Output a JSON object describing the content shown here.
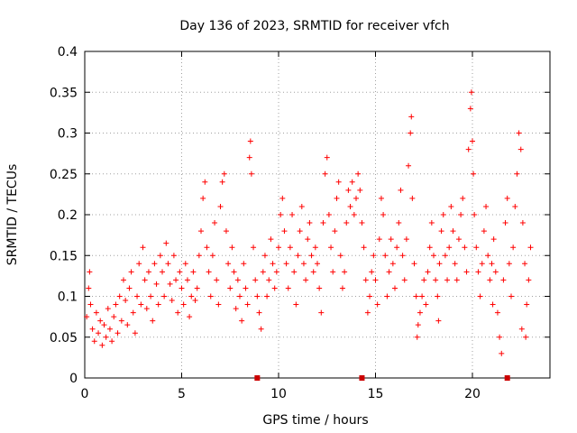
{
  "chart_data": {
    "type": "scatter",
    "title": "Day 136 of 2023, SRMTID for receiver vfch",
    "xlabel": "GPS time / hours",
    "ylabel": "SRMTID / TECUs",
    "xlim": [
      0,
      24
    ],
    "ylim": [
      0,
      0.4
    ],
    "x_ticks": [
      0,
      5,
      10,
      15,
      20
    ],
    "x_tick_labels": [
      "0",
      "5",
      "10",
      "15",
      "20"
    ],
    "y_ticks": [
      0,
      0.05,
      0.1,
      0.15,
      0.2,
      0.25,
      0.3,
      0.35,
      0.4
    ],
    "y_tick_labels": [
      "0",
      "0.05",
      "0.1",
      "0.15",
      "0.2",
      "0.25",
      "0.3",
      "0.35",
      "0.4"
    ],
    "grid": true,
    "marker": "plus",
    "color": "#ff0000",
    "series": [
      {
        "name": "SRMTID",
        "points": [
          [
            0.1,
            0.075
          ],
          [
            0.2,
            0.11
          ],
          [
            0.25,
            0.13
          ],
          [
            0.3,
            0.09
          ],
          [
            0.4,
            0.06
          ],
          [
            0.5,
            0.045
          ],
          [
            0.6,
            0.08
          ],
          [
            0.7,
            0.055
          ],
          [
            0.8,
            0.07
          ],
          [
            0.9,
            0.04
          ],
          [
            1.0,
            0.065
          ],
          [
            1.1,
            0.05
          ],
          [
            1.2,
            0.085
          ],
          [
            1.3,
            0.06
          ],
          [
            1.4,
            0.045
          ],
          [
            1.5,
            0.075
          ],
          [
            1.6,
            0.09
          ],
          [
            1.7,
            0.055
          ],
          [
            1.8,
            0.1
          ],
          [
            1.9,
            0.07
          ],
          [
            2.0,
            0.12
          ],
          [
            2.1,
            0.095
          ],
          [
            2.2,
            0.065
          ],
          [
            2.3,
            0.11
          ],
          [
            2.4,
            0.13
          ],
          [
            2.5,
            0.08
          ],
          [
            2.6,
            0.055
          ],
          [
            2.7,
            0.1
          ],
          [
            2.8,
            0.14
          ],
          [
            2.9,
            0.09
          ],
          [
            3.0,
            0.16
          ],
          [
            3.1,
            0.12
          ],
          [
            3.2,
            0.085
          ],
          [
            3.3,
            0.13
          ],
          [
            3.4,
            0.1
          ],
          [
            3.5,
            0.07
          ],
          [
            3.6,
            0.14
          ],
          [
            3.7,
            0.115
          ],
          [
            3.8,
            0.09
          ],
          [
            3.9,
            0.15
          ],
          [
            4.0,
            0.13
          ],
          [
            4.1,
            0.1
          ],
          [
            4.2,
            0.165
          ],
          [
            4.3,
            0.14
          ],
          [
            4.4,
            0.115
          ],
          [
            4.5,
            0.095
          ],
          [
            4.6,
            0.15
          ],
          [
            4.7,
            0.12
          ],
          [
            4.8,
            0.08
          ],
          [
            4.9,
            0.13
          ],
          [
            5.0,
            0.11
          ],
          [
            5.1,
            0.09
          ],
          [
            5.2,
            0.14
          ],
          [
            5.3,
            0.12
          ],
          [
            5.4,
            0.075
          ],
          [
            5.5,
            0.1
          ],
          [
            5.6,
            0.13
          ],
          [
            5.7,
            0.095
          ],
          [
            5.8,
            0.11
          ],
          [
            5.9,
            0.15
          ],
          [
            6.0,
            0.18
          ],
          [
            6.1,
            0.22
          ],
          [
            6.2,
            0.24
          ],
          [
            6.3,
            0.16
          ],
          [
            6.4,
            0.13
          ],
          [
            6.5,
            0.1
          ],
          [
            6.6,
            0.15
          ],
          [
            6.7,
            0.19
          ],
          [
            6.8,
            0.12
          ],
          [
            6.9,
            0.09
          ],
          [
            7.0,
            0.21
          ],
          [
            7.1,
            0.24
          ],
          [
            7.2,
            0.25
          ],
          [
            7.3,
            0.18
          ],
          [
            7.4,
            0.14
          ],
          [
            7.5,
            0.11
          ],
          [
            7.6,
            0.16
          ],
          [
            7.7,
            0.13
          ],
          [
            7.8,
            0.085
          ],
          [
            7.9,
            0.12
          ],
          [
            8.0,
            0.1
          ],
          [
            8.1,
            0.07
          ],
          [
            8.2,
            0.14
          ],
          [
            8.3,
            0.11
          ],
          [
            8.4,
            0.09
          ],
          [
            8.5,
            0.27
          ],
          [
            8.55,
            0.29
          ],
          [
            8.6,
            0.25
          ],
          [
            8.7,
            0.16
          ],
          [
            8.8,
            0.12
          ],
          [
            8.9,
            0.1
          ],
          [
            9.0,
            0.08
          ],
          [
            9.1,
            0.06
          ],
          [
            9.2,
            0.13
          ],
          [
            9.3,
            0.15
          ],
          [
            9.4,
            0.1
          ],
          [
            9.5,
            0.12
          ],
          [
            9.6,
            0.17
          ],
          [
            9.7,
            0.14
          ],
          [
            9.8,
            0.11
          ],
          [
            9.9,
            0.13
          ],
          [
            10.0,
            0.16
          ],
          [
            10.1,
            0.2
          ],
          [
            10.2,
            0.22
          ],
          [
            10.3,
            0.18
          ],
          [
            10.4,
            0.14
          ],
          [
            10.5,
            0.11
          ],
          [
            10.6,
            0.16
          ],
          [
            10.7,
            0.2
          ],
          [
            10.8,
            0.13
          ],
          [
            10.9,
            0.09
          ],
          [
            11.0,
            0.15
          ],
          [
            11.1,
            0.18
          ],
          [
            11.2,
            0.21
          ],
          [
            11.3,
            0.14
          ],
          [
            11.4,
            0.12
          ],
          [
            11.5,
            0.17
          ],
          [
            11.6,
            0.19
          ],
          [
            11.7,
            0.15
          ],
          [
            11.8,
            0.13
          ],
          [
            11.9,
            0.16
          ],
          [
            12.0,
            0.14
          ],
          [
            12.1,
            0.11
          ],
          [
            12.2,
            0.08
          ],
          [
            12.3,
            0.19
          ],
          [
            12.4,
            0.25
          ],
          [
            12.5,
            0.27
          ],
          [
            12.6,
            0.2
          ],
          [
            12.7,
            0.16
          ],
          [
            12.8,
            0.13
          ],
          [
            12.9,
            0.18
          ],
          [
            13.0,
            0.22
          ],
          [
            13.1,
            0.24
          ],
          [
            13.2,
            0.15
          ],
          [
            13.3,
            0.11
          ],
          [
            13.4,
            0.13
          ],
          [
            13.5,
            0.19
          ],
          [
            13.6,
            0.23
          ],
          [
            13.7,
            0.21
          ],
          [
            13.8,
            0.24
          ],
          [
            13.9,
            0.2
          ],
          [
            14.0,
            0.22
          ],
          [
            14.1,
            0.25
          ],
          [
            14.2,
            0.23
          ],
          [
            14.3,
            0.19
          ],
          [
            14.4,
            0.16
          ],
          [
            14.5,
            0.12
          ],
          [
            14.6,
            0.08
          ],
          [
            14.7,
            0.1
          ],
          [
            14.8,
            0.13
          ],
          [
            14.9,
            0.15
          ],
          [
            15.0,
            0.12
          ],
          [
            15.1,
            0.09
          ],
          [
            15.2,
            0.17
          ],
          [
            15.3,
            0.22
          ],
          [
            15.4,
            0.2
          ],
          [
            15.5,
            0.15
          ],
          [
            15.6,
            0.1
          ],
          [
            15.7,
            0.13
          ],
          [
            15.8,
            0.17
          ],
          [
            15.9,
            0.14
          ],
          [
            16.0,
            0.11
          ],
          [
            16.1,
            0.16
          ],
          [
            16.2,
            0.19
          ],
          [
            16.3,
            0.23
          ],
          [
            16.4,
            0.15
          ],
          [
            16.5,
            0.12
          ],
          [
            16.6,
            0.17
          ],
          [
            16.7,
            0.26
          ],
          [
            16.8,
            0.3
          ],
          [
            16.85,
            0.32
          ],
          [
            16.9,
            0.22
          ],
          [
            17.0,
            0.14
          ],
          [
            17.1,
            0.1
          ],
          [
            17.2,
            0.065
          ],
          [
            17.3,
            0.08
          ],
          [
            17.4,
            0.1
          ],
          [
            17.5,
            0.12
          ],
          [
            17.6,
            0.09
          ],
          [
            17.7,
            0.13
          ],
          [
            17.8,
            0.16
          ],
          [
            17.9,
            0.19
          ],
          [
            18.0,
            0.15
          ],
          [
            18.1,
            0.12
          ],
          [
            18.2,
            0.1
          ],
          [
            18.3,
            0.14
          ],
          [
            18.4,
            0.18
          ],
          [
            18.5,
            0.2
          ],
          [
            18.6,
            0.15
          ],
          [
            18.7,
            0.12
          ],
          [
            18.8,
            0.16
          ],
          [
            18.9,
            0.21
          ],
          [
            19.0,
            0.18
          ],
          [
            19.1,
            0.14
          ],
          [
            19.2,
            0.12
          ],
          [
            19.3,
            0.17
          ],
          [
            19.4,
            0.2
          ],
          [
            19.5,
            0.22
          ],
          [
            19.6,
            0.16
          ],
          [
            19.7,
            0.13
          ],
          [
            19.8,
            0.28
          ],
          [
            19.9,
            0.33
          ],
          [
            19.95,
            0.35
          ],
          [
            20.0,
            0.29
          ],
          [
            20.05,
            0.25
          ],
          [
            20.1,
            0.2
          ],
          [
            20.2,
            0.16
          ],
          [
            20.3,
            0.13
          ],
          [
            20.4,
            0.1
          ],
          [
            20.5,
            0.14
          ],
          [
            20.6,
            0.18
          ],
          [
            20.7,
            0.21
          ],
          [
            20.8,
            0.15
          ],
          [
            20.9,
            0.12
          ],
          [
            21.0,
            0.14
          ],
          [
            21.1,
            0.17
          ],
          [
            21.2,
            0.13
          ],
          [
            21.3,
            0.08
          ],
          [
            21.4,
            0.05
          ],
          [
            21.5,
            0.03
          ],
          [
            21.6,
            0.12
          ],
          [
            21.7,
            0.19
          ],
          [
            21.8,
            0.22
          ],
          [
            21.9,
            0.14
          ],
          [
            22.0,
            0.1
          ],
          [
            22.1,
            0.16
          ],
          [
            22.2,
            0.21
          ],
          [
            22.3,
            0.25
          ],
          [
            22.4,
            0.3
          ],
          [
            22.5,
            0.28
          ],
          [
            22.6,
            0.19
          ],
          [
            22.7,
            0.14
          ],
          [
            22.8,
            0.09
          ],
          [
            22.9,
            0.12
          ],
          [
            23.0,
            0.16
          ],
          [
            22.55,
            0.06
          ],
          [
            22.75,
            0.05
          ],
          [
            21.05,
            0.09
          ],
          [
            18.25,
            0.07
          ],
          [
            17.15,
            0.05
          ]
        ]
      }
    ],
    "axis_markers_x": [
      8.9,
      14.3,
      21.8
    ],
    "axis_markers_color": "#cc0000"
  }
}
